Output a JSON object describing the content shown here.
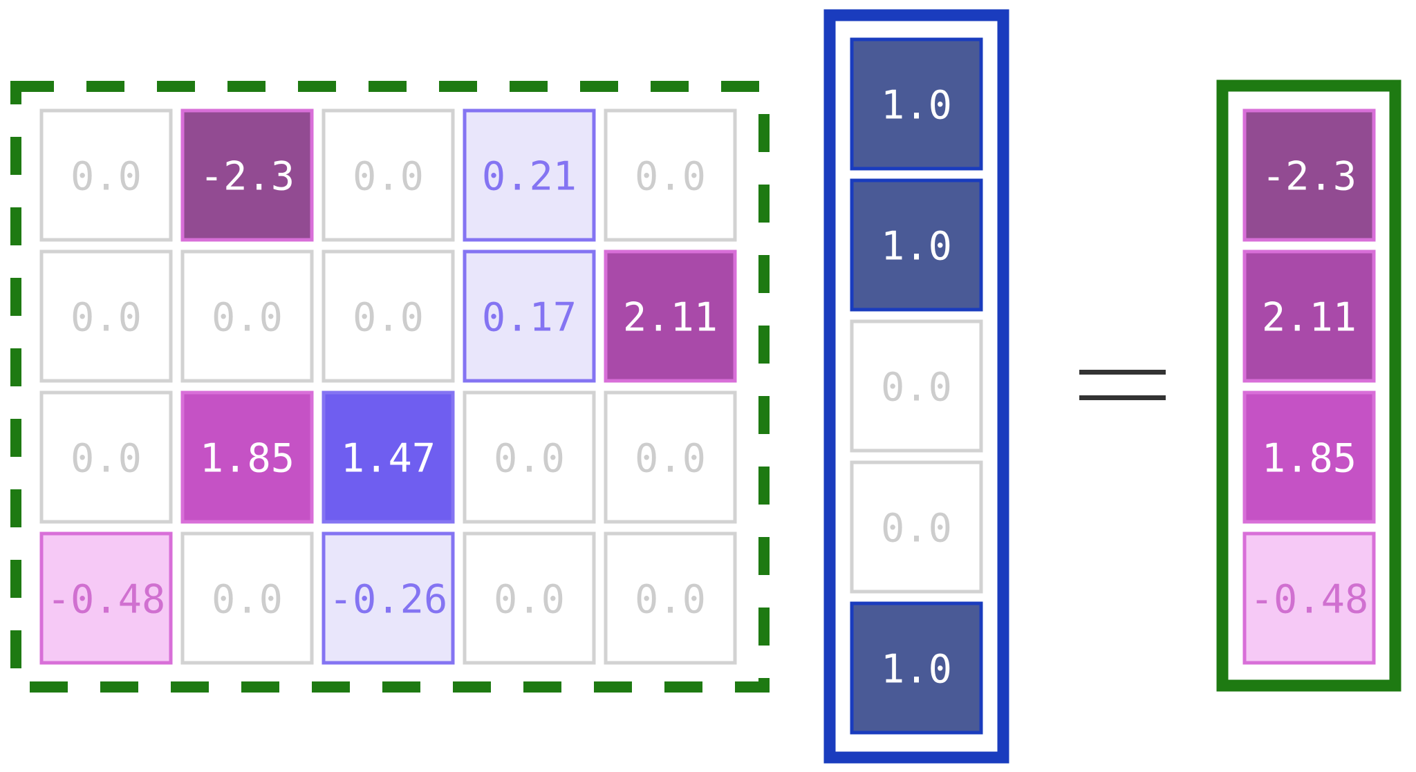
{
  "matrix": {
    "rows": [
      [
        "0.0",
        "-2.3",
        "0.0",
        "0.21",
        "0.0"
      ],
      [
        "0.0",
        "0.0",
        "0.0",
        "0.17",
        "2.11"
      ],
      [
        "0.0",
        "1.85",
        "1.47",
        "0.0",
        "0.0"
      ],
      [
        "-0.48",
        "0.0",
        "-0.26",
        "0.0",
        "0.0"
      ]
    ],
    "styles": [
      [
        "zero",
        "purple-dark",
        "zero",
        "blue-light",
        "zero"
      ],
      [
        "zero",
        "zero",
        "zero",
        "blue-light",
        "purple-mid"
      ],
      [
        "zero",
        "magenta",
        "blue-strong",
        "zero",
        "zero"
      ],
      [
        "pink-light",
        "zero",
        "blue-light",
        "zero",
        "zero"
      ]
    ],
    "border_color": "#1e7a12",
    "border_style": "dashed"
  },
  "vector": {
    "values": [
      "1.0",
      "1.0",
      "0.0",
      "0.0",
      "1.0"
    ],
    "styles": [
      "navy",
      "navy",
      "zero",
      "zero",
      "navy"
    ],
    "border_color": "#1a3cbe"
  },
  "operator": "=",
  "result": {
    "values": [
      "-2.3",
      "2.11",
      "1.85",
      "-0.48"
    ],
    "styles": [
      "purple-dark",
      "purple-mid",
      "magenta",
      "pink-light"
    ],
    "border_color": "#1e7a12"
  },
  "palette": {
    "zero": {
      "fill": "#ffffff",
      "stroke": "#d2d2d2",
      "text": "#cdcdcd"
    },
    "purple-dark": {
      "fill": "#924b92",
      "stroke": "#d86fd8",
      "text": "#ffffff"
    },
    "purple-mid": {
      "fill": "#a94aa9",
      "stroke": "#d86fd8",
      "text": "#ffffff"
    },
    "magenta": {
      "fill": "#c552c5",
      "stroke": "#d86fd8",
      "text": "#ffffff"
    },
    "pink-light": {
      "fill": "#f6c9f6",
      "stroke": "#d86fd8",
      "text": "#d070d0"
    },
    "blue-light": {
      "fill": "#e9e6fb",
      "stroke": "#8474f2",
      "text": "#8474f2"
    },
    "blue-strong": {
      "fill": "#6f5ef0",
      "stroke": "#8474f2",
      "text": "#ffffff"
    },
    "navy": {
      "fill": "#4a5a96",
      "stroke": "#1a3cbe",
      "text": "#ffffff"
    }
  }
}
